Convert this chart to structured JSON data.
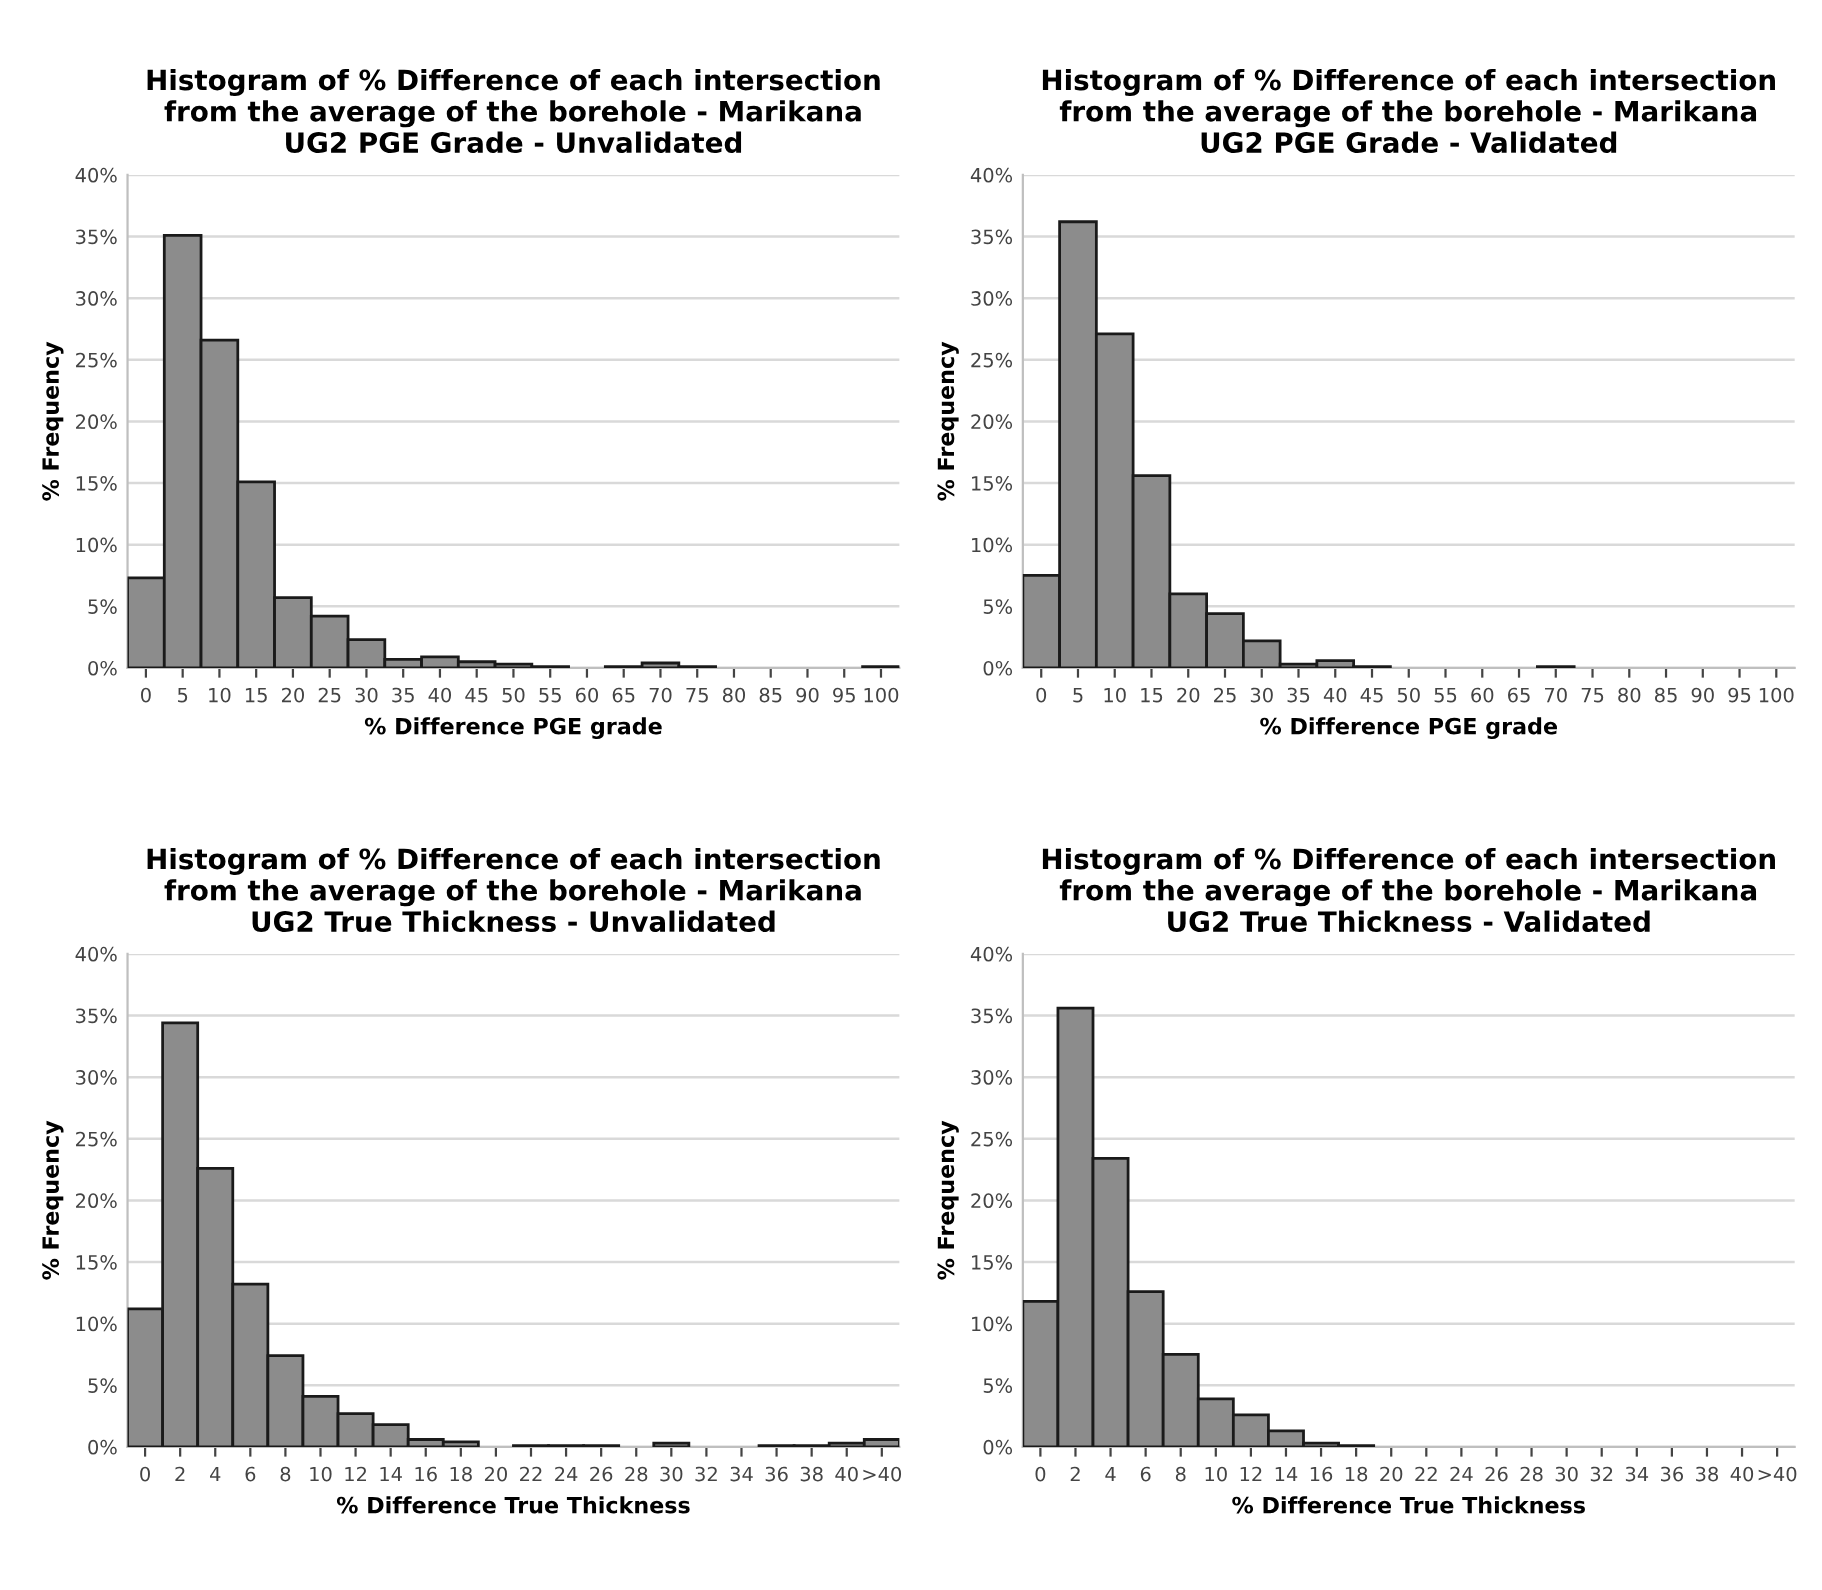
{
  "chart_data": [
    {
      "type": "bar",
      "title": "Histogram of % Difference of each intersection\nfrom the average of the borehole - Marikana\nUG2 PGE Grade - Unvalidated",
      "xlabel": "% Difference PGE grade",
      "ylabel": "% Frequency",
      "color": "#8c8c8c",
      "grid": "y",
      "ylim": [
        0,
        40
      ],
      "yticks": [
        {
          "value": 0,
          "label": "0%"
        },
        {
          "value": 5,
          "label": "5%"
        },
        {
          "value": 10,
          "label": "10%"
        },
        {
          "value": 15,
          "label": "15%"
        },
        {
          "value": 20,
          "label": "20%"
        },
        {
          "value": 25,
          "label": "25%"
        },
        {
          "value": 30,
          "label": "30%"
        },
        {
          "value": 35,
          "label": "35%"
        },
        {
          "value": 40,
          "label": "40%"
        }
      ],
      "categories": [
        "0",
        "5",
        "10",
        "15",
        "20",
        "25",
        "30",
        "35",
        "40",
        "45",
        "50",
        "55",
        "60",
        "65",
        "70",
        "75",
        "80",
        "85",
        "90",
        "95",
        "100"
      ],
      "values": [
        7.3,
        35.1,
        26.6,
        15.1,
        5.7,
        4.2,
        2.3,
        0.7,
        0.9,
        0.5,
        0.3,
        0.1,
        0,
        0.1,
        0.4,
        0.1,
        0,
        0,
        0,
        0,
        0.1
      ]
    },
    {
      "type": "bar",
      "title": "Histogram of % Difference of each intersection\nfrom the average of the borehole - Marikana\nUG2 PGE Grade - Validated",
      "xlabel": "% Difference PGE grade",
      "ylabel": "% Frequency",
      "color": "#8c8c8c",
      "grid": "y",
      "ylim": [
        0,
        40
      ],
      "yticks": [
        {
          "value": 0,
          "label": "0%"
        },
        {
          "value": 5,
          "label": "5%"
        },
        {
          "value": 10,
          "label": "10%"
        },
        {
          "value": 15,
          "label": "15%"
        },
        {
          "value": 20,
          "label": "20%"
        },
        {
          "value": 25,
          "label": "25%"
        },
        {
          "value": 30,
          "label": "30%"
        },
        {
          "value": 35,
          "label": "35%"
        },
        {
          "value": 40,
          "label": "40%"
        }
      ],
      "categories": [
        "0",
        "5",
        "10",
        "15",
        "20",
        "25",
        "30",
        "35",
        "40",
        "45",
        "50",
        "55",
        "60",
        "65",
        "70",
        "75",
        "80",
        "85",
        "90",
        "95",
        "100"
      ],
      "values": [
        7.5,
        36.2,
        27.1,
        15.6,
        6.0,
        4.4,
        2.2,
        0.3,
        0.6,
        0.1,
        0,
        0,
        0,
        0,
        0.1,
        0,
        0,
        0,
        0,
        0,
        0
      ]
    },
    {
      "type": "bar",
      "title": "Histogram of % Difference of each intersection\nfrom the average of the borehole - Marikana\nUG2 True Thickness - Unvalidated",
      "xlabel": "% Difference True Thickness",
      "ylabel": "% Frequency",
      "color": "#8c8c8c",
      "grid": "y",
      "ylim": [
        0,
        40
      ],
      "yticks": [
        {
          "value": 0,
          "label": "0%"
        },
        {
          "value": 5,
          "label": "5%"
        },
        {
          "value": 10,
          "label": "10%"
        },
        {
          "value": 15,
          "label": "15%"
        },
        {
          "value": 20,
          "label": "20%"
        },
        {
          "value": 25,
          "label": "25%"
        },
        {
          "value": 30,
          "label": "30%"
        },
        {
          "value": 35,
          "label": "35%"
        },
        {
          "value": 40,
          "label": "40%"
        }
      ],
      "categories": [
        "0",
        "2",
        "4",
        "6",
        "8",
        "10",
        "12",
        "14",
        "16",
        "18",
        "20",
        "22",
        "24",
        "26",
        "28",
        "30",
        "32",
        "34",
        "36",
        "38",
        "40",
        ">40"
      ],
      "values": [
        11.2,
        34.4,
        22.6,
        13.2,
        7.4,
        4.1,
        2.7,
        1.8,
        0.6,
        0.4,
        0,
        0.1,
        0.1,
        0.1,
        0,
        0.3,
        0,
        0,
        0.1,
        0.1,
        0.3,
        0.6
      ]
    },
    {
      "type": "bar",
      "title": "Histogram of % Difference of each intersection\nfrom the average of the borehole - Marikana\nUG2 True Thickness - Validated",
      "xlabel": "% Difference True Thickness",
      "ylabel": "% Frequency",
      "color": "#8c8c8c",
      "grid": "y",
      "ylim": [
        0,
        40
      ],
      "yticks": [
        {
          "value": 0,
          "label": "0%"
        },
        {
          "value": 5,
          "label": "5%"
        },
        {
          "value": 10,
          "label": "10%"
        },
        {
          "value": 15,
          "label": "15%"
        },
        {
          "value": 20,
          "label": "20%"
        },
        {
          "value": 25,
          "label": "25%"
        },
        {
          "value": 30,
          "label": "30%"
        },
        {
          "value": 35,
          "label": "35%"
        },
        {
          "value": 40,
          "label": "40%"
        }
      ],
      "categories": [
        "0",
        "2",
        "4",
        "6",
        "8",
        "10",
        "12",
        "14",
        "16",
        "18",
        "20",
        "22",
        "24",
        "26",
        "28",
        "30",
        "32",
        "34",
        "36",
        "38",
        "40",
        ">40"
      ],
      "values": [
        11.8,
        35.6,
        23.4,
        12.6,
        7.5,
        3.9,
        2.6,
        1.3,
        0.3,
        0.1,
        0,
        0,
        0,
        0,
        0,
        0,
        0,
        0,
        0,
        0,
        0,
        0
      ]
    }
  ]
}
